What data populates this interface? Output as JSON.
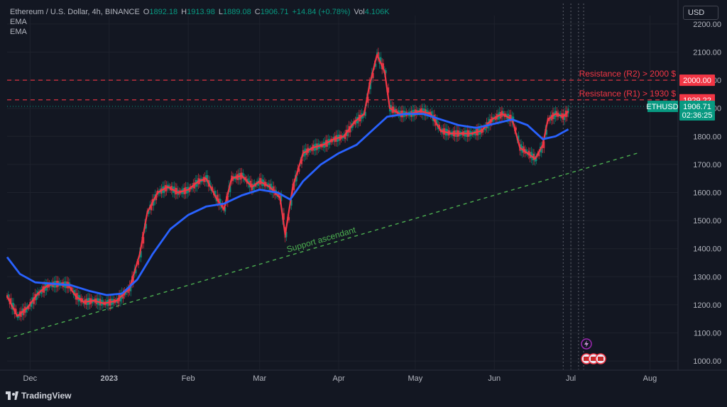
{
  "header": {
    "symbol": "Ethereum / U.S. Dollar, 4h, BINANCE",
    "open_label": "O",
    "open": "1892.18",
    "high_label": "H",
    "high": "1913.98",
    "low_label": "L",
    "low": "1889.08",
    "close_label": "C",
    "close": "1906.71",
    "change": "+14.84 (+0.78%)",
    "vol_label": "Vol",
    "vol": "4.106K",
    "ema1": "EMA",
    "ema2": "EMA"
  },
  "currency": "USD",
  "brand": "TradingView",
  "colors": {
    "background": "#131722",
    "ema_fast": "#f23645",
    "ema_slow": "#2962ff",
    "support": "#4caf50",
    "resistance": "#f23645",
    "price_badge": "#089981",
    "candle_up": "#089981",
    "candle_down": "#f23645"
  },
  "chart_data": {
    "type": "line",
    "title": "Ethereum / U.S. Dollar, 4h, BINANCE",
    "x_ticks": [
      "Dec",
      "2023",
      "Feb",
      "Mar",
      "Apr",
      "May",
      "Jun",
      "Jul",
      "Aug"
    ],
    "x_tick_dates": [
      "2022-12-01",
      "2023-01-01",
      "2023-02-01",
      "2023-03-01",
      "2023-04-01",
      "2023-05-01",
      "2023-06-01",
      "2023-07-01",
      "2023-08-01"
    ],
    "y_ticks": [
      "1000.00",
      "1100.00",
      "1200.00",
      "1300.00",
      "1400.00",
      "1500.00",
      "1600.00",
      "1700.00",
      "1800.00",
      "1900.00",
      "2000.00",
      "2100.00",
      "2200.00"
    ],
    "ylim": [
      970,
      2230
    ],
    "xlim": [
      "2022-11-22",
      "2023-08-12"
    ],
    "grid": true,
    "series": [
      {
        "name": "",
        "role": "ema_fast",
        "points": [
          [
            "2022-11-22",
            1230
          ],
          [
            "2022-11-26",
            1160
          ],
          [
            "2022-11-30",
            1190
          ],
          [
            "2022-12-04",
            1240
          ],
          [
            "2022-12-08",
            1270
          ],
          [
            "2022-12-12",
            1275
          ],
          [
            "2022-12-16",
            1270
          ],
          [
            "2022-12-19",
            1230
          ],
          [
            "2022-12-22",
            1210
          ],
          [
            "2022-12-26",
            1215
          ],
          [
            "2022-12-30",
            1205
          ],
          [
            "2023-01-04",
            1215
          ],
          [
            "2023-01-09",
            1260
          ],
          [
            "2023-01-13",
            1380
          ],
          [
            "2023-01-16",
            1530
          ],
          [
            "2023-01-20",
            1600
          ],
          [
            "2023-01-24",
            1620
          ],
          [
            "2023-01-28",
            1600
          ],
          [
            "2023-02-01",
            1610
          ],
          [
            "2023-02-05",
            1640
          ],
          [
            "2023-02-08",
            1650
          ],
          [
            "2023-02-12",
            1580
          ],
          [
            "2023-02-15",
            1540
          ],
          [
            "2023-02-18",
            1650
          ],
          [
            "2023-02-22",
            1660
          ],
          [
            "2023-02-26",
            1620
          ],
          [
            "2023-03-01",
            1640
          ],
          [
            "2023-03-05",
            1620
          ],
          [
            "2023-03-09",
            1580
          ],
          [
            "2023-03-11",
            1450
          ],
          [
            "2023-03-14",
            1620
          ],
          [
            "2023-03-18",
            1740
          ],
          [
            "2023-03-22",
            1760
          ],
          [
            "2023-03-26",
            1770
          ],
          [
            "2023-03-30",
            1790
          ],
          [
            "2023-04-03",
            1800
          ],
          [
            "2023-04-07",
            1850
          ],
          [
            "2023-04-11",
            1880
          ],
          [
            "2023-04-13",
            1980
          ],
          [
            "2023-04-16",
            2090
          ],
          [
            "2023-04-19",
            2030
          ],
          [
            "2023-04-21",
            1900
          ],
          [
            "2023-04-25",
            1880
          ],
          [
            "2023-04-29",
            1880
          ],
          [
            "2023-05-03",
            1890
          ],
          [
            "2023-05-07",
            1880
          ],
          [
            "2023-05-11",
            1820
          ],
          [
            "2023-05-15",
            1810
          ],
          [
            "2023-05-19",
            1810
          ],
          [
            "2023-05-23",
            1810
          ],
          [
            "2023-05-27",
            1820
          ],
          [
            "2023-05-31",
            1860
          ],
          [
            "2023-06-04",
            1880
          ],
          [
            "2023-06-08",
            1860
          ],
          [
            "2023-06-11",
            1760
          ],
          [
            "2023-06-14",
            1740
          ],
          [
            "2023-06-17",
            1720
          ],
          [
            "2023-06-20",
            1770
          ],
          [
            "2023-06-22",
            1860
          ],
          [
            "2023-06-25",
            1880
          ],
          [
            "2023-06-28",
            1870
          ],
          [
            "2023-06-30",
            1890
          ]
        ]
      },
      {
        "name": "",
        "role": "ema_slow",
        "points": [
          [
            "2022-11-22",
            1370
          ],
          [
            "2022-11-27",
            1310
          ],
          [
            "2022-12-03",
            1280
          ],
          [
            "2022-12-10",
            1275
          ],
          [
            "2022-12-17",
            1270
          ],
          [
            "2022-12-24",
            1250
          ],
          [
            "2022-12-31",
            1235
          ],
          [
            "2023-01-06",
            1240
          ],
          [
            "2023-01-12",
            1290
          ],
          [
            "2023-01-18",
            1380
          ],
          [
            "2023-01-25",
            1470
          ],
          [
            "2023-02-01",
            1520
          ],
          [
            "2023-02-08",
            1550
          ],
          [
            "2023-02-15",
            1560
          ],
          [
            "2023-02-22",
            1590
          ],
          [
            "2023-03-01",
            1610
          ],
          [
            "2023-03-08",
            1600
          ],
          [
            "2023-03-13",
            1575
          ],
          [
            "2023-03-18",
            1640
          ],
          [
            "2023-03-25",
            1700
          ],
          [
            "2023-04-01",
            1740
          ],
          [
            "2023-04-08",
            1770
          ],
          [
            "2023-04-14",
            1820
          ],
          [
            "2023-04-20",
            1870
          ],
          [
            "2023-04-27",
            1880
          ],
          [
            "2023-05-04",
            1880
          ],
          [
            "2023-05-11",
            1860
          ],
          [
            "2023-05-18",
            1840
          ],
          [
            "2023-05-25",
            1830
          ],
          [
            "2023-06-01",
            1845
          ],
          [
            "2023-06-08",
            1860
          ],
          [
            "2023-06-14",
            1840
          ],
          [
            "2023-06-20",
            1790
          ],
          [
            "2023-06-25",
            1800
          ],
          [
            "2023-06-30",
            1825
          ]
        ]
      }
    ],
    "support_line": {
      "start": [
        "2022-11-22",
        1080
      ],
      "end": [
        "2023-07-27",
        1740
      ],
      "label": "Support ascendant"
    },
    "resistance_lines": [
      {
        "value": 2000,
        "label": "Resistance (R2) > 2000 $",
        "price_tag": "2000.00"
      },
      {
        "value": 1930,
        "label": "Resistance (R1) > 1930 $",
        "price_tag": "1929.22"
      }
    ],
    "last_price": {
      "value": 1906.71,
      "symbol": "ETHUSD",
      "price": "1906.71",
      "countdown": "02:36:25"
    }
  }
}
